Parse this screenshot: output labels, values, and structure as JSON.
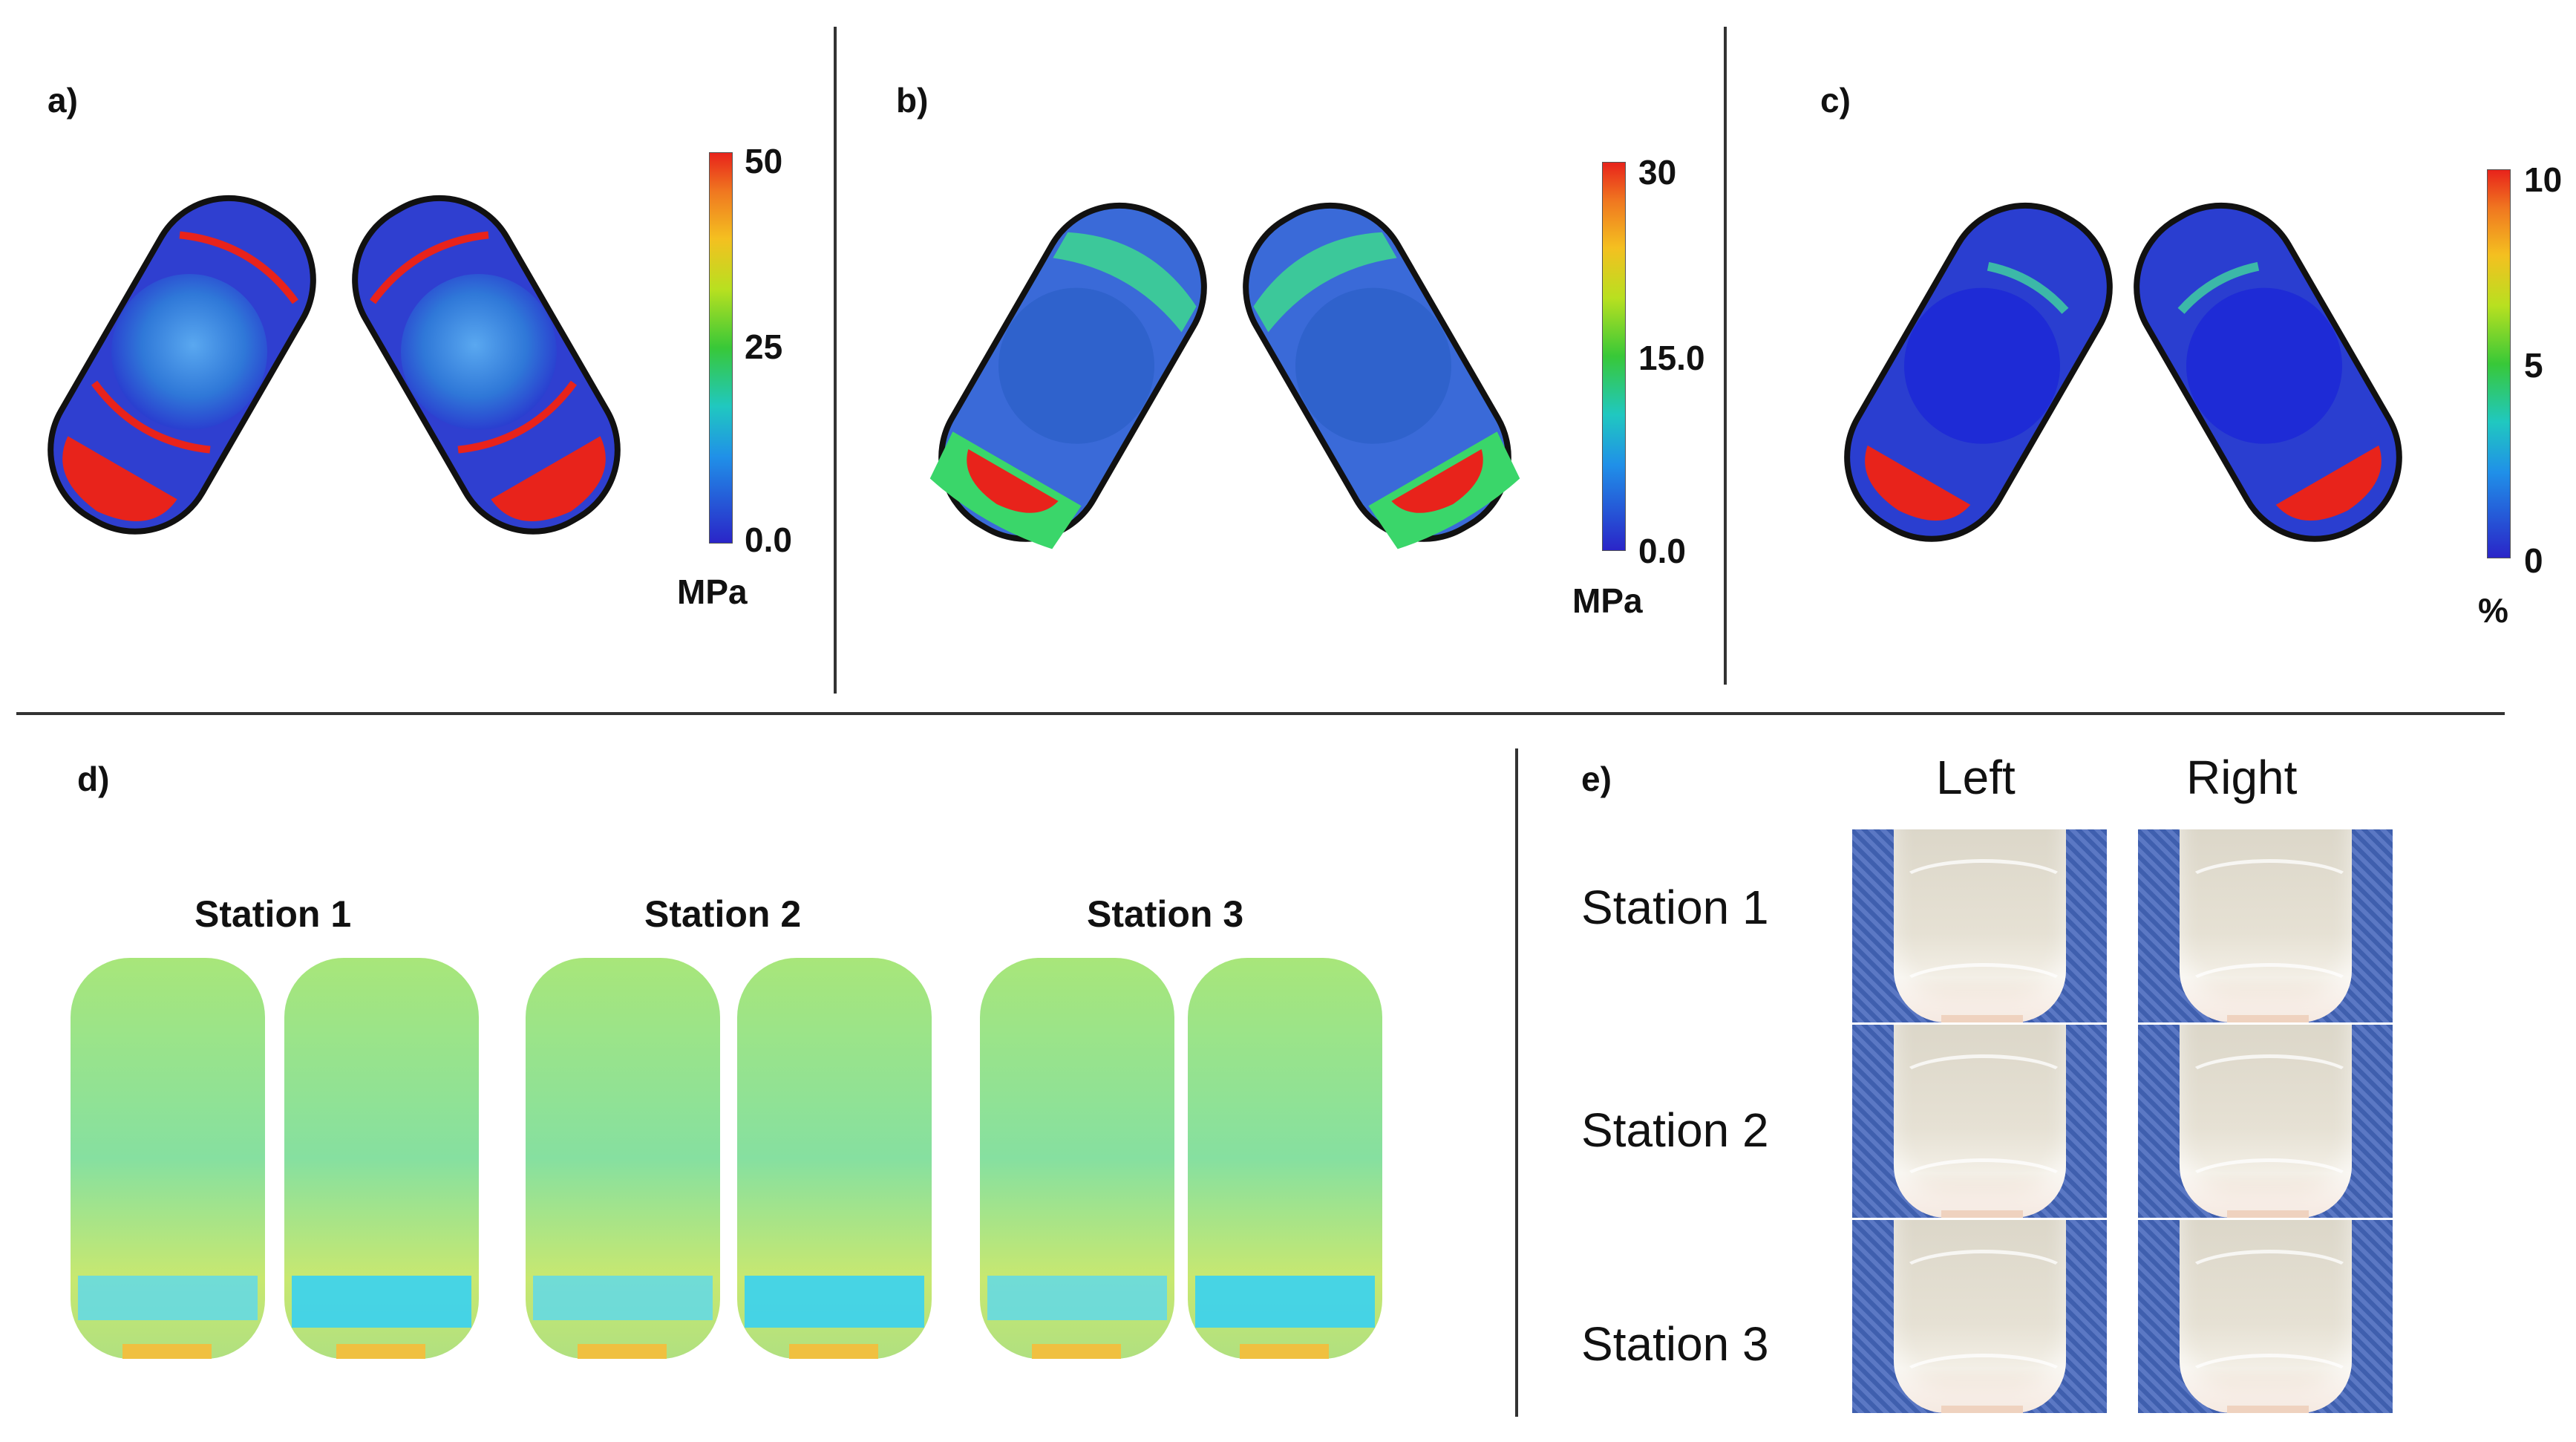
{
  "panels": {
    "a": {
      "label": "a)",
      "colorbar": {
        "ticks": [
          "50",
          "25",
          "0.0"
        ],
        "unit": "MPa"
      }
    },
    "b": {
      "label": "b)",
      "colorbar": {
        "ticks": [
          "30",
          "15.0",
          "0.0"
        ],
        "unit": "MPa"
      }
    },
    "c": {
      "label": "c)",
      "colorbar": {
        "ticks": [
          "10",
          "5",
          "0"
        ],
        "unit": "%"
      }
    },
    "d": {
      "label": "d)",
      "stations": [
        "Station 1",
        "Station 2",
        "Station 3"
      ]
    },
    "e": {
      "label": "e)",
      "columns": [
        "Left",
        "Right"
      ],
      "rows": [
        "Station 1",
        "Station 2",
        "Station 3"
      ]
    }
  },
  "colors": {
    "jet_top": "#e8231b",
    "jet_bottom": "#2a25c8",
    "vial_blue": "#2f3fd0",
    "divider": "#333333"
  }
}
